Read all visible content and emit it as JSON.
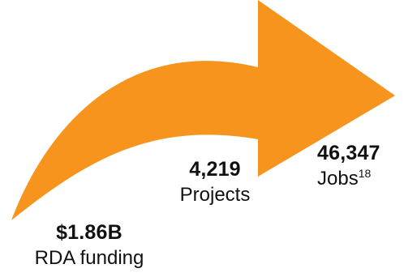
{
  "colors": {
    "arrow_fill": "#F7941D",
    "text": "#111111",
    "background": "#ffffff"
  },
  "stages": {
    "funding": {
      "value": "$1.86B",
      "label": "RDA funding"
    },
    "projects": {
      "value": "4,219",
      "label": "Projects"
    },
    "jobs": {
      "value": "46,347",
      "label": "Jobs",
      "footnote": "18"
    }
  }
}
